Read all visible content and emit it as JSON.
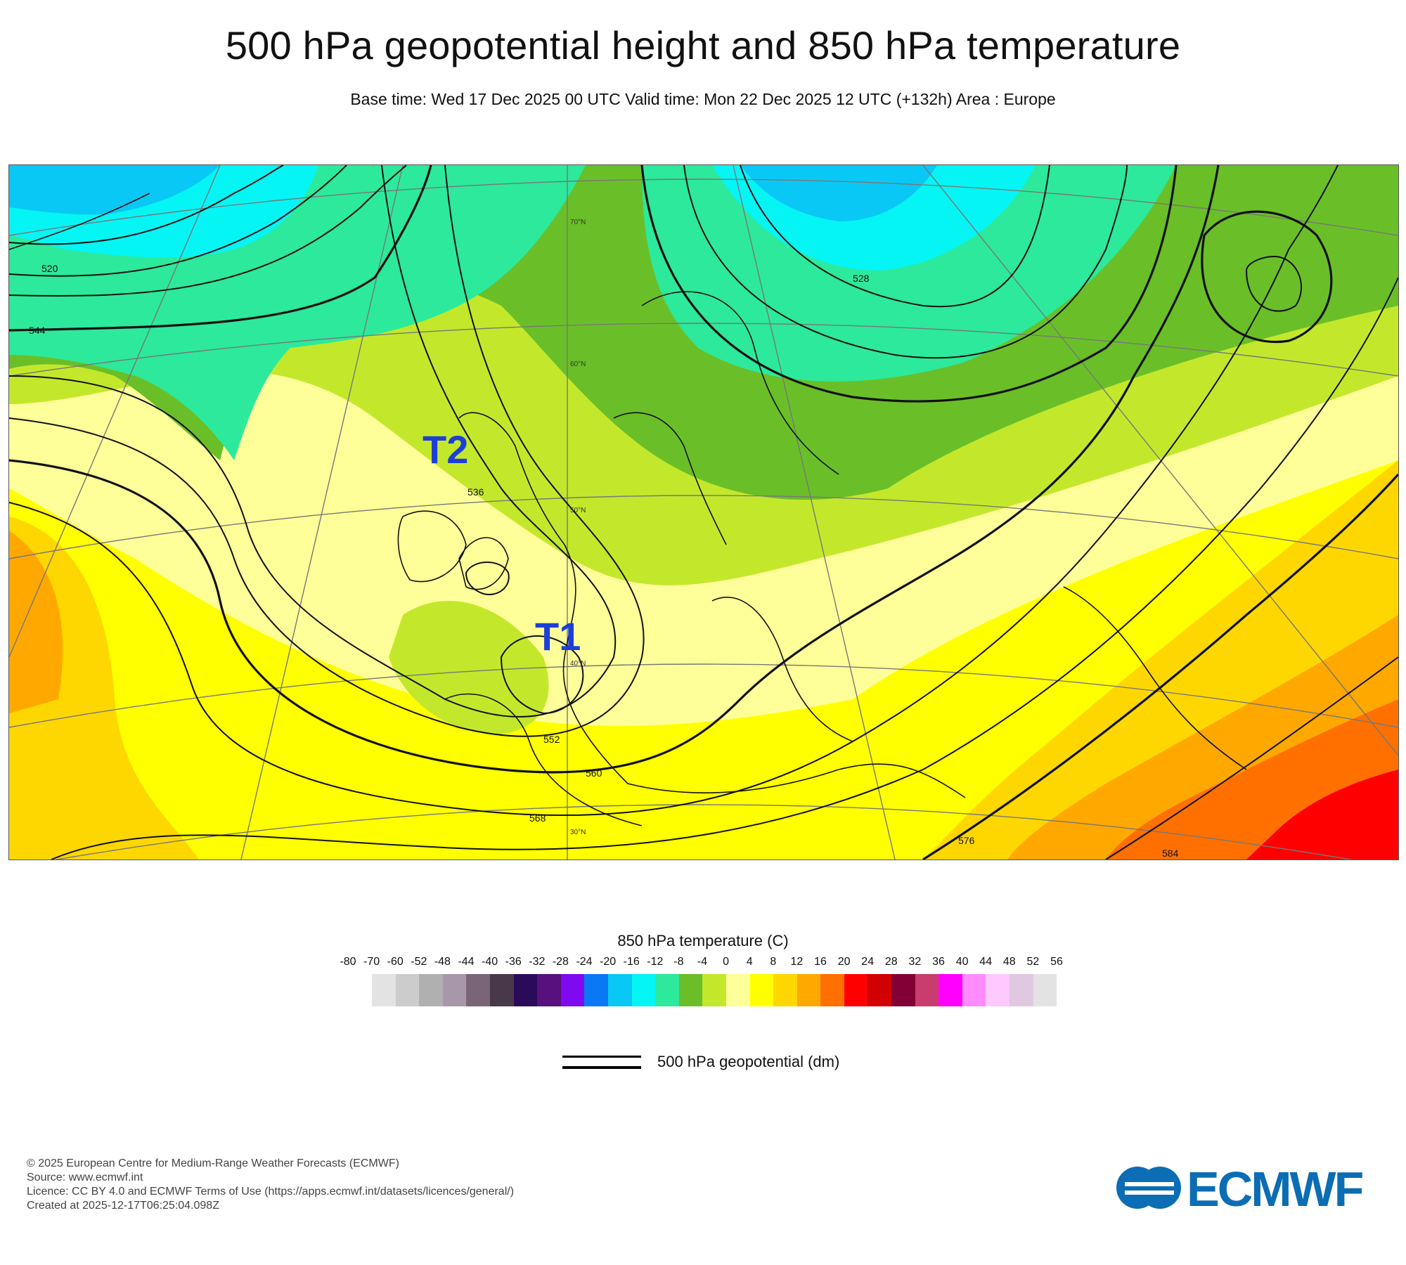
{
  "title": "500 hPa geopotential height and 850 hPa temperature",
  "subtitle": "Base time: Wed 17 Dec 2025 00 UTC Valid time: Mon 22 Dec 2025 12 UTC (+132h) Area : Europe",
  "map": {
    "markers": [
      {
        "label": "T2",
        "lon": -12,
        "lat": 54,
        "color": "#1d3fd8"
      },
      {
        "label": "T1",
        "lon": -3,
        "lat": 40,
        "color": "#1d3fd8"
      }
    ],
    "contour_labels": [
      "520",
      "528",
      "536",
      "544",
      "552",
      "560",
      "568",
      "576",
      "584"
    ],
    "graticule_labels": [
      "70°N",
      "60°N",
      "50°N",
      "40°N",
      "30°N"
    ]
  },
  "legend": {
    "temperature_title": "850 hPa temperature (C)",
    "ticks": [
      "-80",
      "-70",
      "-60",
      "-52",
      "-48",
      "-44",
      "-40",
      "-36",
      "-32",
      "-28",
      "-24",
      "-20",
      "-16",
      "-12",
      "-8",
      "-4",
      "0",
      "4",
      "8",
      "12",
      "16",
      "20",
      "24",
      "28",
      "32",
      "36",
      "40",
      "44",
      "48",
      "52",
      "56"
    ],
    "colors": [
      "#e3e3e3",
      "#cccccc",
      "#b0b0b0",
      "#a896aa",
      "#7a6478",
      "#49384a",
      "#2c0a5a",
      "#58107e",
      "#7f0aef",
      "#0a78f5",
      "#0ac8f5",
      "#05f5f5",
      "#2de99b",
      "#6abf28",
      "#c3e82b",
      "#ffff99",
      "#ffff00",
      "#ffd700",
      "#ffa800",
      "#ff7000",
      "#ff0000",
      "#d20000",
      "#820033",
      "#c83c6e",
      "#ff00ff",
      "#ff8cff",
      "#ffc8ff",
      "#e1c8e1",
      "#e3e3e3"
    ],
    "geopotential_label": "500 hPa geopotential (dm)"
  },
  "footer": {
    "line1": "© 2025 European Centre for Medium-Range Weather Forecasts (ECMWF)",
    "line2": "Source: www.ecmwf.int",
    "line3": "Licence: CC BY 4.0 and ECMWF Terms of Use (https://apps.ecmwf.int/datasets/licences/general/)",
    "line4": "Created at 2025-12-17T06:25:04.098Z"
  },
  "logo": {
    "text": "ECMWF",
    "color": "#0b6db4"
  }
}
